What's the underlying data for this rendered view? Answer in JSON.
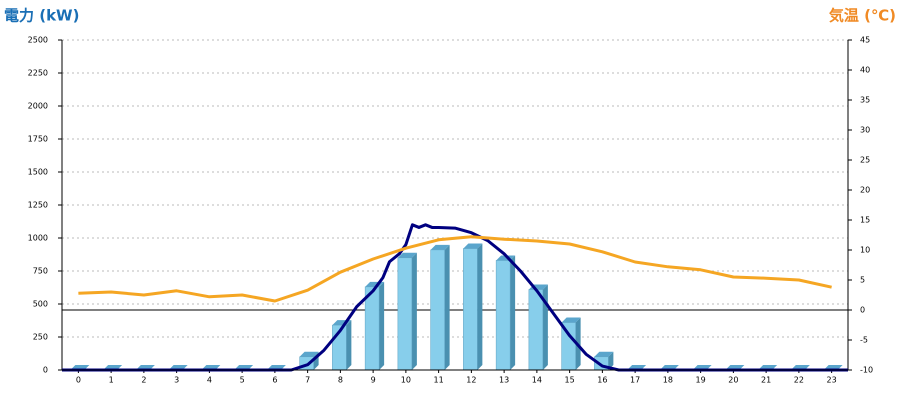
{
  "chart_data": {
    "type": "bar",
    "ylabel": "電力 (kW)",
    "y2label": "気温 (℃)",
    "categories": [
      "0",
      "1",
      "2",
      "3",
      "4",
      "5",
      "6",
      "7",
      "8",
      "9",
      "10",
      "11",
      "12",
      "13",
      "14",
      "15",
      "16",
      "17",
      "18",
      "19",
      "20",
      "21",
      "22",
      "23"
    ],
    "ylim": [
      0,
      2500
    ],
    "yticks": [
      0,
      250,
      500,
      750,
      1000,
      1250,
      1500,
      1750,
      2000,
      2250,
      2500
    ],
    "y2lim": [
      -10,
      45
    ],
    "y2ticks": [
      -10,
      -5,
      0,
      5,
      10,
      15,
      20,
      25,
      30,
      35,
      40,
      45
    ],
    "grid": true,
    "series": [
      {
        "type": "bar",
        "color": "#87ceeb",
        "values": [
          0,
          0,
          0,
          0,
          0,
          0,
          0,
          100,
          340,
          630,
          850,
          910,
          920,
          830,
          610,
          360,
          100,
          0,
          0,
          0,
          0,
          0,
          0,
          0
        ]
      },
      {
        "type": "line",
        "color": "#000080",
        "x": [
          -0.5,
          6.5,
          7,
          7.5,
          8,
          8.5,
          9,
          9.3,
          9.5,
          9.8,
          10,
          10.2,
          10.4,
          10.6,
          10.8,
          11,
          11.5,
          12,
          12.5,
          13,
          13.5,
          14,
          14.5,
          15,
          15.5,
          16,
          16.5,
          23.5
        ],
        "values": [
          0,
          0,
          40,
          150,
          300,
          480,
          600,
          700,
          820,
          880,
          950,
          1100,
          1080,
          1100,
          1080,
          1080,
          1075,
          1040,
          980,
          880,
          750,
          600,
          430,
          260,
          120,
          30,
          0,
          0
        ]
      },
      {
        "type": "line",
        "color": "#f5a623",
        "axis": "y2",
        "values": [
          2.8,
          3.0,
          2.5,
          3.2,
          2.2,
          2.5,
          1.5,
          3.3,
          6.3,
          8.5,
          10.3,
          11.7,
          12.2,
          11.8,
          11.5,
          11.0,
          9.7,
          8.0,
          7.2,
          6.7,
          5.5,
          5.3,
          5.0,
          3.8
        ]
      }
    ]
  }
}
